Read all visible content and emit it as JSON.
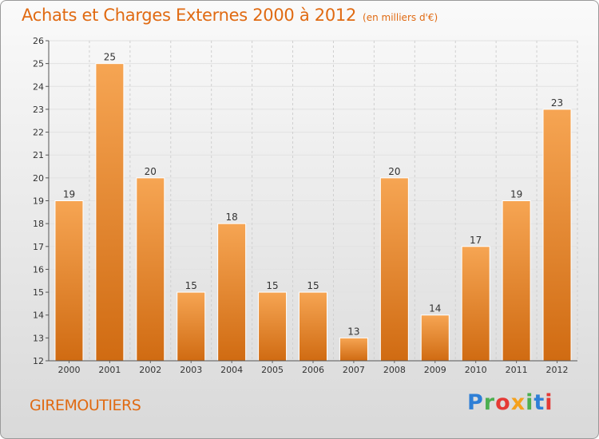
{
  "title": "Achats et Charges Externes 2000 à 2012",
  "subtitle": "(en milliers d'€)",
  "commune": "GIREMOUTIERS",
  "logo": {
    "letters": [
      "P",
      "r",
      "o",
      "x",
      "i",
      "t",
      "i"
    ],
    "colors": [
      "#2e7fd6",
      "#4caf50",
      "#e53935",
      "#f4a11d",
      "#4caf50",
      "#2e7fd6",
      "#e53935"
    ]
  },
  "chart_data": {
    "type": "bar",
    "title": "Achats et Charges Externes 2000 à 2012",
    "subtitle": "(en milliers d'€)",
    "categories": [
      "2000",
      "2001",
      "2002",
      "2003",
      "2004",
      "2005",
      "2006",
      "2007",
      "2008",
      "2009",
      "2010",
      "2011",
      "2012"
    ],
    "values": [
      19,
      25,
      20,
      15,
      18,
      15,
      15,
      13,
      20,
      14,
      17,
      19,
      23
    ],
    "ylim": [
      12,
      26
    ],
    "yticks": [
      12,
      13,
      14,
      15,
      16,
      17,
      18,
      19,
      20,
      21,
      22,
      23,
      24,
      25,
      26
    ],
    "grid": "vertical-dashed",
    "bar_color": "#f08a2c"
  }
}
